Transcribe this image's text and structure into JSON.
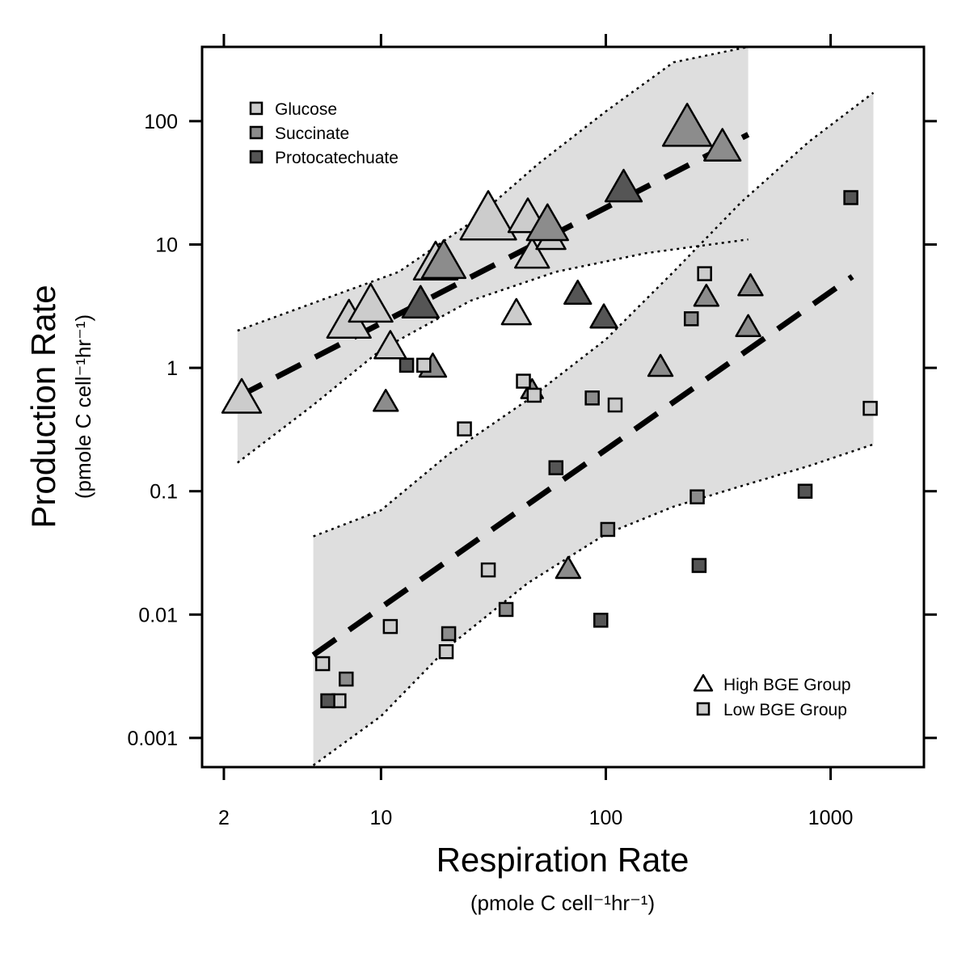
{
  "chart_data": {
    "type": "scatter",
    "title": "",
    "xlabel": "Respiration Rate",
    "xlabel_units": "(pmole C cell⁻¹hr⁻¹)",
    "ylabel": "Production Rate",
    "ylabel_units": "(pmole C cell⁻¹hr⁻¹)",
    "x_scale": "log",
    "y_scale": "log",
    "xlim": [
      1.6,
      2600
    ],
    "ylim": [
      0.00058,
      400
    ],
    "x_ticks": [
      {
        "value": 2,
        "label": "2"
      },
      {
        "value": 10,
        "label": "10"
      },
      {
        "value": 100,
        "label": "100"
      },
      {
        "value": 1000,
        "label": "1000"
      }
    ],
    "y_ticks": [
      {
        "value": 0.001,
        "label": "0.001"
      },
      {
        "value": 0.01,
        "label": "0.01"
      },
      {
        "value": 0.1,
        "label": "0.1"
      },
      {
        "value": 1,
        "label": "1"
      },
      {
        "value": 10,
        "label": "10"
      },
      {
        "value": 100,
        "label": "100"
      }
    ],
    "grid": false,
    "legend_substrate": {
      "position": "top-left",
      "entries": [
        {
          "label": "Glucose",
          "color": "#cccccc"
        },
        {
          "label": "Succinate",
          "color": "#8c8c8c"
        },
        {
          "label": "Protocatechuate",
          "color": "#555555"
        }
      ]
    },
    "legend_group": {
      "position": "bottom-right",
      "entries": [
        {
          "label": "High BGE Group",
          "marker": "triangle"
        },
        {
          "label": "Low BGE Group",
          "marker": "square"
        }
      ]
    },
    "colors": {
      "glucose": "#cccccc",
      "succinate": "#8c8c8c",
      "protocatechuate": "#555555",
      "band": "#dedede"
    },
    "regressions": [
      {
        "group": "High BGE Group",
        "fit": [
          [
            2.3,
            0.58
          ],
          [
            430,
            78
          ]
        ],
        "ci_upper": [
          [
            2.3,
            2.0
          ],
          [
            12,
            6.0
          ],
          [
            25,
            15
          ],
          [
            50,
            45
          ],
          [
            100,
            120
          ],
          [
            200,
            300
          ],
          [
            430,
            400
          ]
        ],
        "ci_lower": [
          [
            2.3,
            0.17
          ],
          [
            5,
            0.5
          ],
          [
            10,
            1.4
          ],
          [
            25,
            3.5
          ],
          [
            60,
            6.0
          ],
          [
            150,
            8.5
          ],
          [
            430,
            11
          ]
        ]
      },
      {
        "group": "Low BGE Group",
        "fit": [
          [
            5,
            0.0047
          ],
          [
            1250,
            5.5
          ]
        ],
        "ci_upper": [
          [
            5,
            0.043
          ],
          [
            10,
            0.07
          ],
          [
            20,
            0.2
          ],
          [
            45,
            0.55
          ],
          [
            100,
            1.7
          ],
          [
            200,
            6.0
          ],
          [
            400,
            22
          ],
          [
            800,
            68
          ],
          [
            1550,
            170
          ]
        ],
        "ci_lower": [
          [
            5,
            0.0006
          ],
          [
            10,
            0.0015
          ],
          [
            20,
            0.0055
          ],
          [
            45,
            0.018
          ],
          [
            100,
            0.045
          ],
          [
            200,
            0.075
          ],
          [
            400,
            0.11
          ],
          [
            800,
            0.16
          ],
          [
            1550,
            0.24
          ]
        ]
      }
    ],
    "series": [
      {
        "group": "High BGE Group",
        "substrate": "Glucose",
        "marker": "triangle",
        "points": [
          {
            "x": 2.4,
            "y": 0.55,
            "size": 1.6
          },
          {
            "x": 7.2,
            "y": 2.3,
            "size": 1.8
          },
          {
            "x": 9.0,
            "y": 3.1,
            "size": 1.8
          },
          {
            "x": 11.0,
            "y": 1.45,
            "size": 1.3
          },
          {
            "x": 17.5,
            "y": 6.8,
            "size": 1.8
          },
          {
            "x": 30.0,
            "y": 15.5,
            "size": 2.3
          },
          {
            "x": 40.0,
            "y": 2.7,
            "size": 1.2
          },
          {
            "x": 45.0,
            "y": 16.0,
            "size": 1.6
          },
          {
            "x": 47.0,
            "y": 8.0,
            "size": 1.4
          },
          {
            "x": 57.0,
            "y": 11.0,
            "size": 1.2
          }
        ]
      },
      {
        "group": "High BGE Group",
        "substrate": "Succinate",
        "marker": "triangle",
        "points": [
          {
            "x": 10.5,
            "y": 0.52,
            "size": 1.0
          },
          {
            "x": 17.0,
            "y": 1.0,
            "size": 1.1
          },
          {
            "x": 19.0,
            "y": 7.0,
            "size": 1.8
          },
          {
            "x": 47.0,
            "y": 0.65,
            "size": 0.9
          },
          {
            "x": 55.0,
            "y": 14.0,
            "size": 1.7
          },
          {
            "x": 68.0,
            "y": 0.023,
            "size": 1.0
          },
          {
            "x": 175.0,
            "y": 1.0,
            "size": 1.0
          },
          {
            "x": 230.0,
            "y": 85.0,
            "size": 2.0
          },
          {
            "x": 280.0,
            "y": 3.7,
            "size": 1.0
          },
          {
            "x": 330.0,
            "y": 60.0,
            "size": 1.5
          },
          {
            "x": 440.0,
            "y": 4.5,
            "size": 1.0
          },
          {
            "x": 430.0,
            "y": 2.1,
            "size": 1.0
          }
        ]
      },
      {
        "group": "High BGE Group",
        "substrate": "Protocatechuate",
        "marker": "triangle",
        "points": [
          {
            "x": 15.0,
            "y": 3.2,
            "size": 1.5
          },
          {
            "x": 75.0,
            "y": 3.9,
            "size": 1.1
          },
          {
            "x": 98.0,
            "y": 2.5,
            "size": 1.1
          },
          {
            "x": 120.0,
            "y": 28.0,
            "size": 1.5
          }
        ]
      },
      {
        "group": "Low BGE Group",
        "substrate": "Glucose",
        "marker": "square",
        "points": [
          {
            "x": 5.5,
            "y": 0.004
          },
          {
            "x": 6.5,
            "y": 0.002
          },
          {
            "x": 11.0,
            "y": 0.008
          },
          {
            "x": 15.5,
            "y": 1.05
          },
          {
            "x": 19.5,
            "y": 0.005
          },
          {
            "x": 23.5,
            "y": 0.32
          },
          {
            "x": 30.0,
            "y": 0.023
          },
          {
            "x": 43.0,
            "y": 0.78
          },
          {
            "x": 48.0,
            "y": 0.6
          },
          {
            "x": 110.0,
            "y": 0.5
          },
          {
            "x": 275.0,
            "y": 5.8
          },
          {
            "x": 1500.0,
            "y": 0.47
          }
        ]
      },
      {
        "group": "Low BGE Group",
        "substrate": "Succinate",
        "marker": "square",
        "points": [
          {
            "x": 7.0,
            "y": 0.003
          },
          {
            "x": 20.0,
            "y": 0.007
          },
          {
            "x": 36.0,
            "y": 0.011
          },
          {
            "x": 87.0,
            "y": 0.57
          },
          {
            "x": 102.0,
            "y": 0.049
          },
          {
            "x": 240.0,
            "y": 2.5
          },
          {
            "x": 255.0,
            "y": 0.09
          }
        ]
      },
      {
        "group": "Low BGE Group",
        "substrate": "Protocatechuate",
        "marker": "square",
        "points": [
          {
            "x": 5.8,
            "y": 0.002
          },
          {
            "x": 13.0,
            "y": 1.05
          },
          {
            "x": 60.0,
            "y": 0.155
          },
          {
            "x": 95.0,
            "y": 0.009
          },
          {
            "x": 260.0,
            "y": 0.025
          },
          {
            "x": 770.0,
            "y": 0.1
          },
          {
            "x": 1230.0,
            "y": 24.0
          }
        ]
      }
    ]
  }
}
